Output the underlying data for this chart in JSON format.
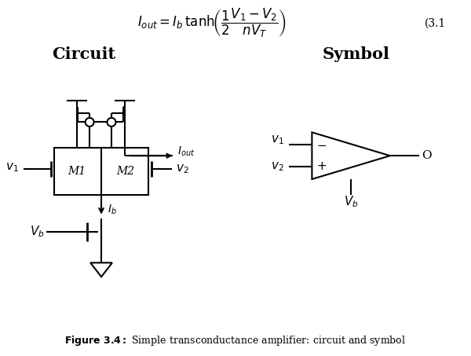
{
  "bg_color": "#ffffff",
  "lw": 1.5,
  "circuit_label": "Circuit",
  "symbol_label": "Symbol",
  "caption": "Figure 3.4: Simple transconductance amplifier: circuit and symbol",
  "eq_number": "(3.1"
}
